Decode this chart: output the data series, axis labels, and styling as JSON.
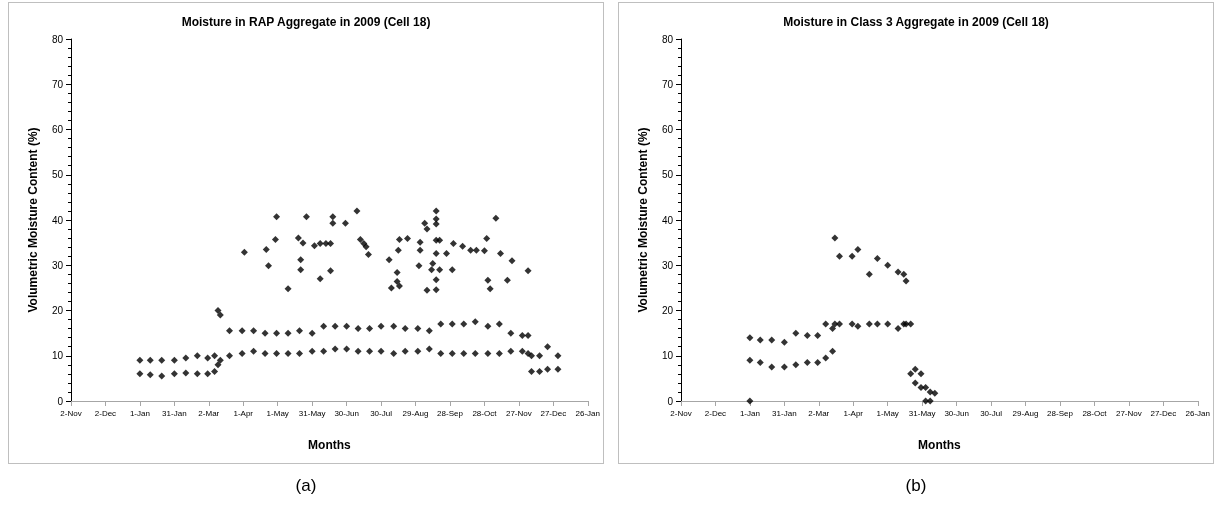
{
  "chart_data": [
    {
      "type": "scatter",
      "title": "Moisture in RAP Aggregate in 2009 (Cell 18)",
      "xlabel": "Months",
      "ylabel": "Volumetric Moisture Content (%)",
      "annotations": [
        "(a)"
      ],
      "marker": "diamond",
      "grid": false,
      "xlim": [
        "2008-11-02",
        "2010-01-26"
      ],
      "xticks": [
        {
          "value": "2008-11-02",
          "label": "2-Nov"
        },
        {
          "value": "2008-12-02",
          "label": "2-Dec"
        },
        {
          "value": "2009-01-01",
          "label": "1-Jan"
        },
        {
          "value": "2009-01-31",
          "label": "31-Jan"
        },
        {
          "value": "2009-03-02",
          "label": "2-Mar"
        },
        {
          "value": "2009-04-01",
          "label": "1-Apr"
        },
        {
          "value": "2009-05-01",
          "label": "1-May"
        },
        {
          "value": "2009-05-31",
          "label": "31-May"
        },
        {
          "value": "2009-06-30",
          "label": "30-Jun"
        },
        {
          "value": "2009-07-30",
          "label": "30-Jul"
        },
        {
          "value": "2009-08-29",
          "label": "29-Aug"
        },
        {
          "value": "2009-09-28",
          "label": "28-Sep"
        },
        {
          "value": "2009-10-28",
          "label": "28-Oct"
        },
        {
          "value": "2009-11-27",
          "label": "27-Nov"
        },
        {
          "value": "2009-12-27",
          "label": "27-Dec"
        },
        {
          "value": "2010-01-26",
          "label": "26-Jan"
        }
      ],
      "ylim": [
        0,
        80
      ],
      "yticks": [
        0,
        10,
        20,
        30,
        40,
        50,
        60,
        70,
        80
      ],
      "series": [
        {
          "color": "#000000",
          "x": [
            "2009-01-01",
            "2009-01-01",
            "2009-01-10",
            "2009-01-10",
            "2009-01-20",
            "2009-01-20",
            "2009-01-31",
            "2009-01-31",
            "2009-02-10",
            "2009-02-10",
            "2009-02-20",
            "2009-02-20",
            "2009-03-01",
            "2009-03-01",
            "2009-03-07",
            "2009-03-07",
            "2009-03-10",
            "2009-03-10",
            "2009-03-12",
            "2009-03-12",
            "2009-03-20",
            "2009-03-20",
            "2009-03-31",
            "2009-03-31",
            "2009-04-10",
            "2009-04-10",
            "2009-04-20",
            "2009-04-20",
            "2009-04-30",
            "2009-04-30",
            "2009-05-10",
            "2009-05-10",
            "2009-05-20",
            "2009-05-20",
            "2009-05-31",
            "2009-05-31",
            "2009-06-10",
            "2009-06-10",
            "2009-06-20",
            "2009-06-20",
            "2009-06-30",
            "2009-06-30",
            "2009-07-10",
            "2009-07-10",
            "2009-07-20",
            "2009-07-20",
            "2009-07-30",
            "2009-07-30",
            "2009-08-10",
            "2009-08-10",
            "2009-08-20",
            "2009-08-20",
            "2009-08-31",
            "2009-08-31",
            "2009-09-10",
            "2009-09-10",
            "2009-09-20",
            "2009-09-20",
            "2009-09-30",
            "2009-09-30",
            "2009-10-10",
            "2009-10-10",
            "2009-10-20",
            "2009-10-20",
            "2009-10-31",
            "2009-10-31",
            "2009-11-10",
            "2009-11-10",
            "2009-11-20",
            "2009-11-20",
            "2009-11-30",
            "2009-11-30",
            "2009-12-05",
            "2009-12-05",
            "2009-12-08",
            "2009-12-08",
            "2009-12-15",
            "2009-12-15",
            "2009-12-22",
            "2009-12-22",
            "2009-12-31",
            "2009-12-31",
            "2009-04-02",
            "2009-04-21",
            "2009-04-23",
            "2009-04-29",
            "2009-04-30",
            "2009-05-10",
            "2009-05-19",
            "2009-05-21",
            "2009-05-21",
            "2009-05-23",
            "2009-05-26",
            "2009-06-02",
            "2009-06-07",
            "2009-06-07",
            "2009-06-12",
            "2009-06-16",
            "2009-06-16",
            "2009-06-18",
            "2009-06-18",
            "2009-06-29",
            "2009-07-09",
            "2009-07-12",
            "2009-07-15",
            "2009-07-17",
            "2009-07-19",
            "2009-08-06",
            "2009-08-08",
            "2009-08-13",
            "2009-08-13",
            "2009-08-15",
            "2009-08-14",
            "2009-08-15",
            "2009-08-22",
            "2009-09-02",
            "2009-09-02",
            "2009-09-01",
            "2009-09-06",
            "2009-09-08",
            "2009-09-08",
            "2009-09-12",
            "2009-09-13",
            "2009-09-16",
            "2009-09-16",
            "2009-09-16",
            "2009-09-16",
            "2009-09-16",
            "2009-09-16",
            "2009-09-16",
            "2009-09-19",
            "2009-09-19",
            "2009-09-25",
            "2009-09-30",
            "2009-10-01",
            "2009-10-09",
            "2009-10-16",
            "2009-10-21",
            "2009-10-28",
            "2009-10-31",
            "2009-10-30",
            "2009-11-02",
            "2009-11-07",
            "2009-11-11",
            "2009-11-17",
            "2009-11-21",
            "2009-12-05"
          ],
          "values": [
            6,
            9,
            5.8,
            9,
            5.5,
            9,
            6,
            9,
            6.2,
            9.5,
            6,
            10,
            6,
            9.5,
            6.5,
            10,
            8,
            20,
            9,
            19,
            10,
            15.5,
            10.5,
            15.5,
            11,
            15.5,
            10.5,
            15,
            10.5,
            15,
            10.5,
            15,
            10.5,
            15.5,
            11,
            15,
            11,
            16.5,
            11.5,
            16.5,
            11.5,
            16.5,
            11,
            16,
            11,
            16,
            11,
            16.5,
            10.5,
            16.5,
            11,
            16,
            11,
            16,
            11.5,
            15.5,
            10.5,
            17,
            10.5,
            17,
            10.5,
            17,
            10.5,
            17.5,
            10.5,
            16.5,
            10.5,
            17,
            11,
            15,
            11,
            14.5,
            10.5,
            14.5,
            6.5,
            10,
            6.5,
            10,
            7,
            12,
            7,
            10,
            32.9,
            33.5,
            29.9,
            35.7,
            40.7,
            24.8,
            36,
            31.2,
            29,
            34.9,
            40.7,
            34.3,
            34.8,
            27,
            34.8,
            34.8,
            28.8,
            40.7,
            39.3,
            39.3,
            42,
            35.7,
            34.8,
            34.1,
            32.4,
            31.2,
            25,
            26.4,
            28.4,
            25.4,
            33.3,
            35.7,
            35.9,
            35.1,
            33.3,
            29.9,
            39.3,
            38,
            24.5,
            29,
            30.4,
            42,
            40.2,
            39.1,
            35.5,
            32.6,
            26.8,
            24.6,
            35.5,
            29,
            32.6,
            29,
            34.8,
            34.2,
            33.3,
            33.3,
            33.2,
            26.7,
            35.9,
            24.8,
            40.4,
            32.6,
            26.7,
            31,
            28.8
          ]
        }
      ]
    },
    {
      "type": "scatter",
      "title": "Moisture in Class 3 Aggregate in 2009 (Cell 18)",
      "xlabel": "Months",
      "ylabel": "Volumetric Moisture Content (%)",
      "annotations": [
        "(b)"
      ],
      "marker": "diamond",
      "grid": false,
      "xlim": [
        "2008-11-02",
        "2010-01-26"
      ],
      "xticks": [
        {
          "value": "2008-11-02",
          "label": "2-Nov"
        },
        {
          "value": "2008-12-02",
          "label": "2-Dec"
        },
        {
          "value": "2009-01-01",
          "label": "1-Jan"
        },
        {
          "value": "2009-01-31",
          "label": "31-Jan"
        },
        {
          "value": "2009-03-02",
          "label": "2-Mar"
        },
        {
          "value": "2009-04-01",
          "label": "1-Apr"
        },
        {
          "value": "2009-05-01",
          "label": "1-May"
        },
        {
          "value": "2009-05-31",
          "label": "31-May"
        },
        {
          "value": "2009-06-30",
          "label": "30-Jun"
        },
        {
          "value": "2009-07-30",
          "label": "30-Jul"
        },
        {
          "value": "2009-08-29",
          "label": "29-Aug"
        },
        {
          "value": "2009-09-28",
          "label": "28-Sep"
        },
        {
          "value": "2009-10-28",
          "label": "28-Oct"
        },
        {
          "value": "2009-11-27",
          "label": "27-Nov"
        },
        {
          "value": "2009-12-27",
          "label": "27-Dec"
        },
        {
          "value": "2010-01-26",
          "label": "26-Jan"
        }
      ],
      "ylim": [
        0,
        80
      ],
      "yticks": [
        0,
        10,
        20,
        30,
        40,
        50,
        60,
        70,
        80
      ],
      "series": [
        {
          "color": "#000000",
          "x": [
            "2009-01-01",
            "2009-01-01",
            "2009-01-01",
            "2009-01-10",
            "2009-01-10",
            "2009-01-20",
            "2009-01-20",
            "2009-01-31",
            "2009-01-31",
            "2009-02-10",
            "2009-02-10",
            "2009-02-20",
            "2009-02-20",
            "2009-03-01",
            "2009-03-01",
            "2009-03-08",
            "2009-03-08",
            "2009-03-14",
            "2009-03-14",
            "2009-03-16",
            "2009-03-16",
            "2009-03-20",
            "2009-03-20",
            "2009-03-31",
            "2009-03-31",
            "2009-04-05",
            "2009-04-05",
            "2009-04-15",
            "2009-04-15",
            "2009-04-22",
            "2009-04-22",
            "2009-05-01",
            "2009-05-01",
            "2009-05-10",
            "2009-05-10",
            "2009-05-15",
            "2009-05-15",
            "2009-05-17",
            "2009-05-17",
            "2009-05-21",
            "2009-05-21",
            "2009-05-25",
            "2009-05-25",
            "2009-05-30",
            "2009-05-30",
            "2009-06-03",
            "2009-06-03",
            "2009-06-07",
            "2009-06-07",
            "2009-06-11"
          ],
          "values": [
            0,
            9,
            14,
            8.5,
            13.5,
            7.5,
            13.5,
            7.5,
            13,
            8,
            15,
            8.5,
            14.5,
            8.5,
            14.5,
            9.5,
            17,
            11,
            16,
            17,
            36,
            17,
            32,
            17,
            32,
            16.5,
            33.5,
            17,
            28,
            17,
            31.5,
            17,
            30,
            16,
            28.5,
            17,
            28,
            17,
            26.5,
            6,
            17,
            4,
            7,
            3,
            6,
            0,
            3,
            0,
            2,
            1.7
          ]
        }
      ]
    }
  ]
}
